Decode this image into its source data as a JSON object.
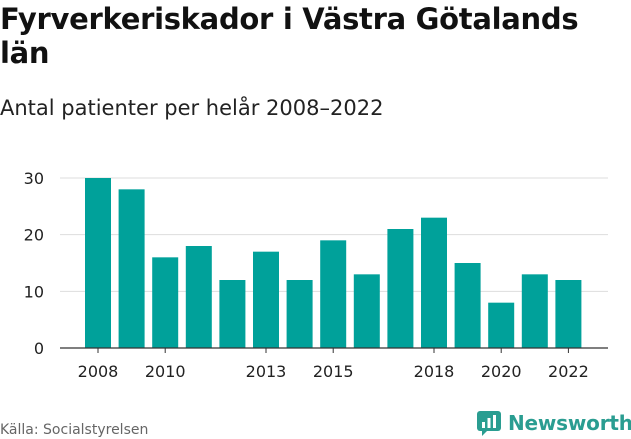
{
  "title": "Fyrverkeriskador i Västra Götalands län",
  "subtitle": "Antal patienter per helår 2008–2022",
  "source": "Källa: Socialstyrelsen",
  "brand": {
    "name": "Newsworthy",
    "color": "#2a9d91"
  },
  "chart_data": {
    "type": "bar",
    "categories": [
      "2008",
      "2009",
      "2010",
      "2011",
      "2012",
      "2013",
      "2014",
      "2015",
      "2016",
      "2017",
      "2018",
      "2019",
      "2020",
      "2021",
      "2022"
    ],
    "values": [
      30,
      28,
      16,
      18,
      12,
      17,
      12,
      19,
      13,
      21,
      23,
      15,
      8,
      13,
      12
    ],
    "x_tick_labels": [
      "2008",
      "2010",
      "2013",
      "2015",
      "2018",
      "2020",
      "2022"
    ],
    "y_ticks": [
      0,
      10,
      20,
      30
    ],
    "ylim": [
      0,
      30
    ],
    "xlabel": "",
    "ylabel": "",
    "grid": true,
    "legend": "none",
    "bar_color": "#00a19a",
    "grid_color": "#dddddd",
    "axis_color": "#333333"
  }
}
